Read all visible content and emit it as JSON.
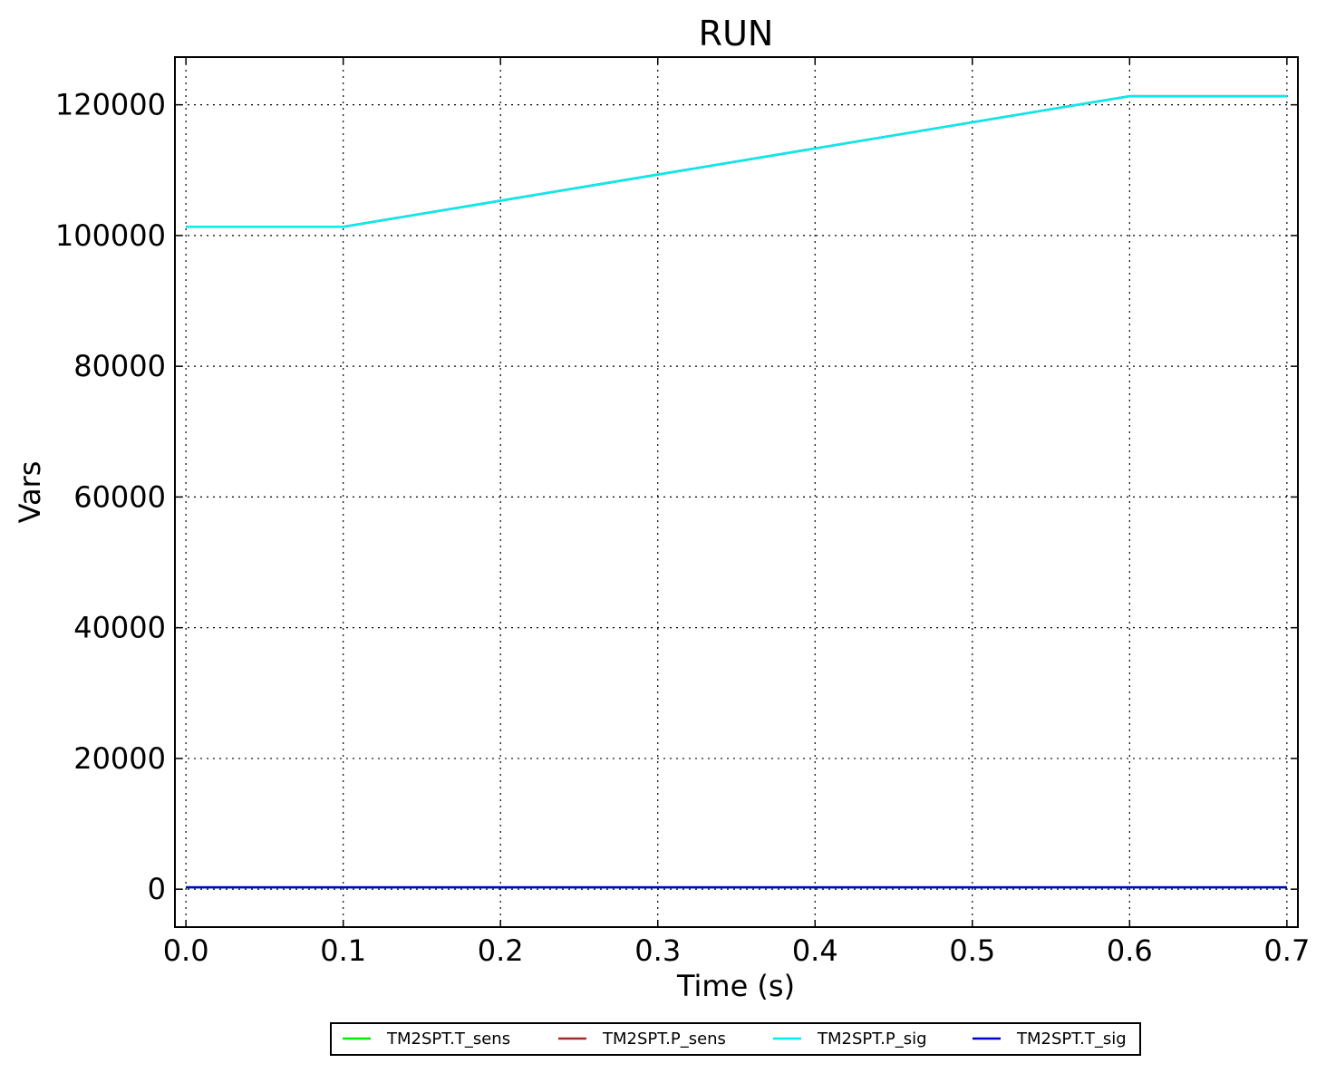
{
  "chart_data": {
    "type": "line",
    "title": "RUN",
    "xlabel": "Time (s)",
    "ylabel": "Vars",
    "xlim": [
      -0.007,
      0.707
    ],
    "ylim": [
      -5800,
      127300
    ],
    "xticks": [
      0.0,
      0.1,
      0.2,
      0.3,
      0.4,
      0.5,
      0.6,
      0.7
    ],
    "xtick_labels": [
      "0.0",
      "0.1",
      "0.2",
      "0.3",
      "0.4",
      "0.5",
      "0.6",
      "0.7"
    ],
    "yticks": [
      0,
      20000,
      40000,
      60000,
      80000,
      100000,
      120000
    ],
    "ytick_labels": [
      "0",
      "20000",
      "40000",
      "60000",
      "80000",
      "100000",
      "120000"
    ],
    "grid": true,
    "legend_position": "bottom-center",
    "series": [
      {
        "name": "TM2SPT.T_sens",
        "color": "#00ee00",
        "x": [
          0.0,
          0.1,
          0.6,
          0.7
        ],
        "y": [
          293,
          293,
          293,
          293
        ]
      },
      {
        "name": "TM2SPT.P_sens",
        "color": "#a52a2a",
        "x": [
          0.0,
          0.1,
          0.6,
          0.7
        ],
        "y": [
          101325,
          101325,
          121325,
          121325
        ]
      },
      {
        "name": "TM2SPT.P_sig",
        "color": "#00eeee",
        "x": [
          0.0,
          0.1,
          0.6,
          0.7
        ],
        "y": [
          101325,
          101325,
          121325,
          121325
        ]
      },
      {
        "name": "TM2SPT.T_sig",
        "color": "#0000cd",
        "x": [
          0.0,
          0.1,
          0.6,
          0.7
        ],
        "y": [
          293,
          293,
          293,
          293
        ]
      }
    ]
  }
}
